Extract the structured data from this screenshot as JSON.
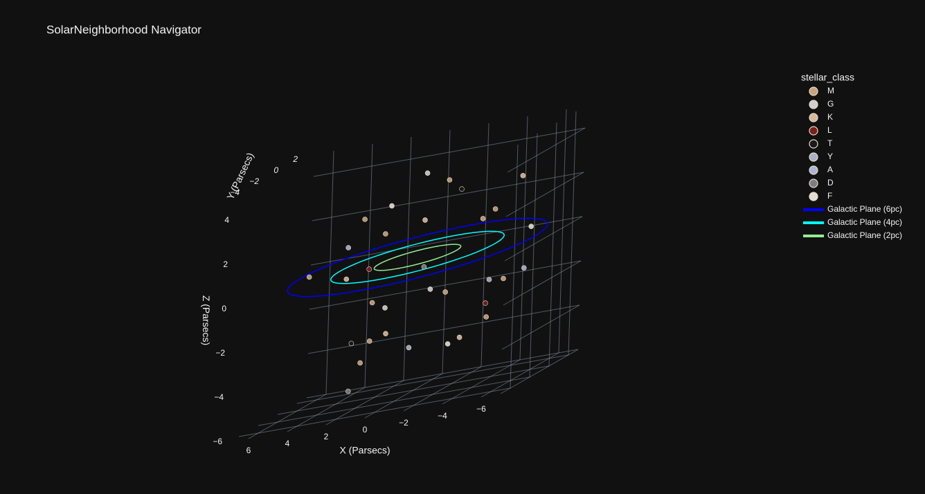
{
  "chart_data": {
    "type": "scatter3d",
    "title": "SolarNeighborhood Navigator",
    "xlabel": "X (Parsecs)",
    "ylabel": "Y (Parsecs)",
    "zlabel": "Z (Parsecs)",
    "xlim": [
      -7,
      7
    ],
    "ylim": [
      -5,
      3
    ],
    "zlim": [
      -6,
      5
    ],
    "xticks": [
      {
        "value": -6,
        "label": "−6"
      },
      {
        "value": -4,
        "label": "−4"
      },
      {
        "value": -2,
        "label": "−2"
      },
      0,
      2,
      4,
      6
    ],
    "yticks": [
      {
        "value": -4,
        "label": "−4"
      },
      {
        "value": -2,
        "label": "−2"
      },
      0,
      2
    ],
    "zticks": [
      {
        "value": -6,
        "label": "−6"
      },
      {
        "value": -4,
        "label": "−4"
      },
      {
        "value": -2,
        "label": "−2"
      },
      0,
      2,
      4
    ],
    "grid": true,
    "legend_title": "stellar_class",
    "series": [
      {
        "name": "M",
        "color": "#c9a27e",
        "x": [
          1.2,
          -3.5,
          4.1,
          -0.8,
          2.6,
          -5.2,
          0.3,
          -2.1,
          3.3,
          -4.4,
          1.8,
          -1.5
        ],
        "y": [
          -1.0,
          2.0,
          -3.0,
          1.5,
          0.5,
          -2.5,
          -4.0,
          2.5,
          1.0,
          -1.5,
          -2.0,
          0.0
        ],
        "z": [
          1.5,
          -2.0,
          0.5,
          3.0,
          -3.5,
          2.0,
          -1.0,
          0.8,
          -4.5,
          -3.0,
          2.5,
          -1.8
        ]
      },
      {
        "name": "G",
        "color": "#cfcfcf",
        "x": [
          2.1,
          -1.7,
          0.6
        ],
        "y": [
          1.0,
          -2.0,
          2.0
        ],
        "z": [
          -2.2,
          -1.2,
          3.4
        ]
      },
      {
        "name": "K",
        "color": "#d8b898",
        "x": [
          -2.8,
          3.9,
          0.9,
          -4.6,
          -0.2
        ],
        "y": [
          -1.0,
          0.5,
          2.5,
          1.5,
          -3.5
        ],
        "z": [
          -3.8,
          -0.5,
          1.2,
          2.6,
          -2.6
        ]
      },
      {
        "name": "L",
        "color": "#7a1e1e",
        "x": [
          1.5,
          -3.1
        ],
        "y": [
          -2.0,
          1.0
        ],
        "z": [
          0.2,
          -2.8
        ]
      },
      {
        "name": "T",
        "color": "#1a1a1a",
        "x": [
          -1.2,
          2.8
        ],
        "y": [
          2.0,
          -1.0
        ],
        "z": [
          2.4,
          -3.2
        ]
      },
      {
        "name": "Y",
        "color": "#a9b0c8",
        "x": [
          -4.0,
          0.8
        ],
        "y": [
          -0.5,
          1.0
        ],
        "z": [
          -1.5,
          -4.2
        ]
      },
      {
        "name": "A",
        "color": "#aab4d4",
        "x": [
          3.6,
          -4.8
        ],
        "y": [
          0.0,
          1.5
        ],
        "z": [
          1.0,
          -1.6
        ]
      },
      {
        "name": "D",
        "color": "#7d7d85",
        "x": [
          -0.6,
          1.9
        ],
        "y": [
          -0.5,
          -3.0
        ],
        "z": [
          -0.4,
          -5.0
        ]
      },
      {
        "name": "F",
        "color": "#e2ddd6",
        "x": [
          2.4,
          -2.2,
          -5.6
        ],
        "y": [
          2.0,
          -1.0,
          0.5
        ],
        "z": [
          2.2,
          -4.0,
          0.4
        ]
      }
    ],
    "planes": [
      {
        "name": "Galactic Plane (6pc)",
        "color": "#0000ff",
        "radius": 6
      },
      {
        "name": "Galactic Plane (4pc)",
        "color": "#00ffff",
        "radius": 4
      },
      {
        "name": "Galactic Plane (2pc)",
        "color": "#90ee90",
        "radius": 2
      }
    ]
  }
}
